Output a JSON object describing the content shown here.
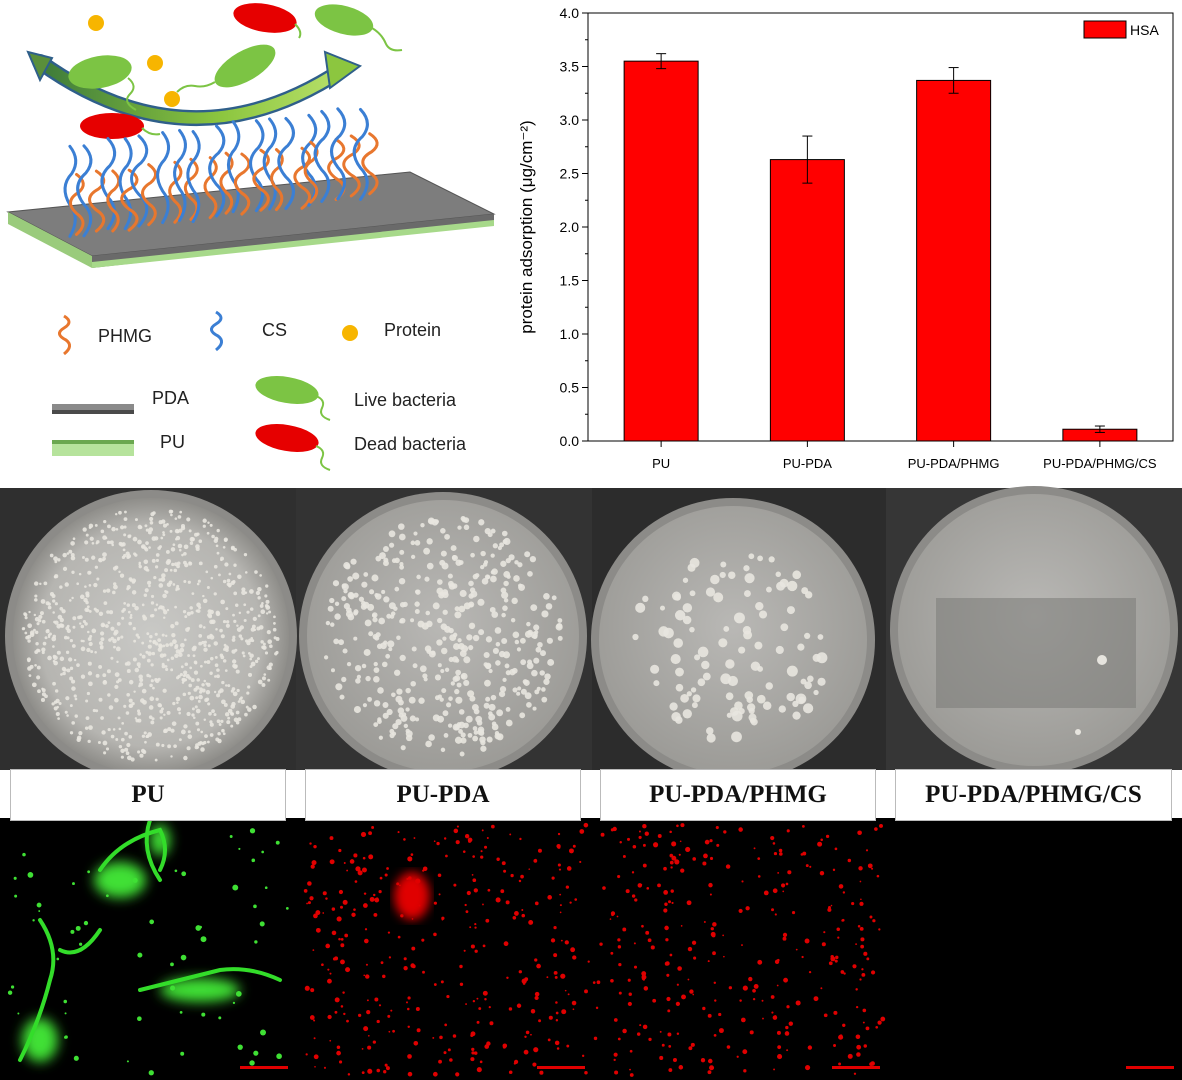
{
  "schematic": {
    "legend": {
      "phmg": "PHMG",
      "cs": "CS",
      "protein": "Protein",
      "pda": "PDA",
      "pu": "PU",
      "live": "Live bacteria",
      "dead": "Dead bacteria"
    }
  },
  "chart_data": {
    "type": "bar",
    "categories": [
      "PU",
      "PU-PDA",
      "PU-PDA/PHMG",
      "PU-PDA/PHMG/CS"
    ],
    "series": [
      {
        "name": "HSA",
        "values": [
          3.55,
          2.63,
          3.37,
          0.11
        ],
        "errors": [
          0.07,
          0.22,
          0.12,
          0.03
        ]
      }
    ],
    "ylabel": "protein adsorption (μg/cm⁻²)",
    "ylim": [
      0,
      4.0
    ],
    "yticks": [
      "0.0",
      "0.5",
      "1.0",
      "1.5",
      "2.0",
      "2.5",
      "3.0",
      "3.5",
      "4.0"
    ],
    "legend_position": "top-right",
    "bar_color": "#ff0000",
    "grid": false
  },
  "panels": {
    "labels": [
      "PU",
      "PU-PDA",
      "PU-PDA/PHMG",
      "PU-PDA/PHMG/CS"
    ]
  },
  "colors": {
    "bar": "#ff0000",
    "live_bacteria": "#4caf50",
    "dead_bacteria": "#e60000",
    "phmg": "#e8772e",
    "cs": "#3b7fd4",
    "protein": "#f7b500"
  }
}
